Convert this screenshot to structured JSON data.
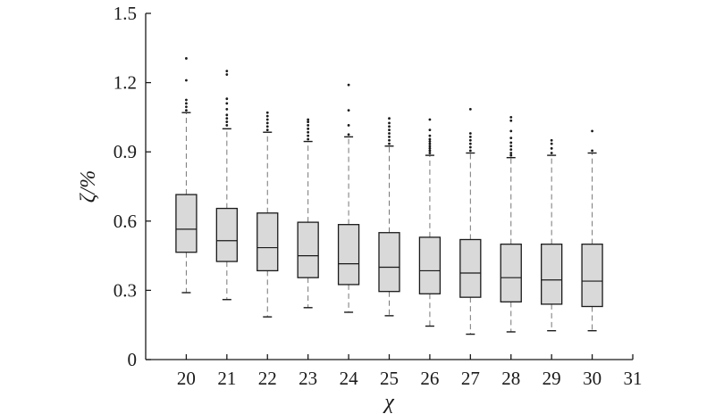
{
  "chart_data": {
    "type": "box",
    "xlabel": "χ",
    "ylabel": "ζ/%",
    "ylim": [
      0,
      1.5
    ],
    "xlim": [
      19,
      31
    ],
    "xticks": [
      "20",
      "21",
      "22",
      "23",
      "24",
      "25",
      "26",
      "27",
      "28",
      "29",
      "30",
      "31"
    ],
    "yticks": [
      "0",
      "0.3",
      "0.6",
      "0.9",
      "1.2",
      "1.5"
    ],
    "grid": false,
    "colors": {
      "box_fill": "#d9d9d9",
      "box_stroke": "#1a1a1a",
      "whisker": "#777777",
      "outlier": "#1a1a1a"
    },
    "boxes": [
      {
        "x": 20,
        "whisker_low": 0.29,
        "q1": 0.465,
        "median": 0.565,
        "q3": 0.715,
        "whisker_high": 1.07,
        "outliers": [
          1.08,
          1.095,
          1.11,
          1.125,
          1.21,
          1.305
        ]
      },
      {
        "x": 21,
        "whisker_low": 0.26,
        "q1": 0.425,
        "median": 0.515,
        "q3": 0.655,
        "whisker_high": 1.0,
        "outliers": [
          1.015,
          1.03,
          1.045,
          1.06,
          1.085,
          1.11,
          1.13,
          1.235,
          1.25
        ]
      },
      {
        "x": 22,
        "whisker_low": 0.185,
        "q1": 0.385,
        "median": 0.485,
        "q3": 0.635,
        "whisker_high": 0.985,
        "outliers": [
          0.995,
          1.01,
          1.025,
          1.04,
          1.055,
          1.07
        ]
      },
      {
        "x": 23,
        "whisker_low": 0.225,
        "q1": 0.355,
        "median": 0.45,
        "q3": 0.595,
        "whisker_high": 0.945,
        "outliers": [
          0.955,
          0.97,
          0.985,
          1.0,
          1.015,
          1.03,
          1.04
        ]
      },
      {
        "x": 24,
        "whisker_low": 0.205,
        "q1": 0.325,
        "median": 0.415,
        "q3": 0.585,
        "whisker_high": 0.965,
        "outliers": [
          0.975,
          1.015,
          1.08,
          1.19
        ]
      },
      {
        "x": 25,
        "whisker_low": 0.19,
        "q1": 0.295,
        "median": 0.4,
        "q3": 0.55,
        "whisker_high": 0.925,
        "outliers": [
          0.935,
          0.95,
          0.965,
          0.98,
          0.995,
          1.01,
          1.025,
          1.045
        ]
      },
      {
        "x": 26,
        "whisker_low": 0.145,
        "q1": 0.285,
        "median": 0.385,
        "q3": 0.53,
        "whisker_high": 0.885,
        "outliers": [
          0.895,
          0.905,
          0.915,
          0.925,
          0.935,
          0.945,
          0.955,
          0.97,
          0.995,
          1.04
        ]
      },
      {
        "x": 27,
        "whisker_low": 0.11,
        "q1": 0.27,
        "median": 0.375,
        "q3": 0.52,
        "whisker_high": 0.895,
        "outliers": [
          0.905,
          0.92,
          0.935,
          0.95,
          0.965,
          0.98,
          1.085
        ]
      },
      {
        "x": 28,
        "whisker_low": 0.12,
        "q1": 0.25,
        "median": 0.355,
        "q3": 0.5,
        "whisker_high": 0.875,
        "outliers": [
          0.885,
          0.895,
          0.91,
          0.925,
          0.94,
          0.96,
          0.99,
          1.035,
          1.05
        ]
      },
      {
        "x": 29,
        "whisker_low": 0.125,
        "q1": 0.24,
        "median": 0.345,
        "q3": 0.5,
        "whisker_high": 0.885,
        "outliers": [
          0.895,
          0.915,
          0.935,
          0.95
        ]
      },
      {
        "x": 30,
        "whisker_low": 0.125,
        "q1": 0.23,
        "median": 0.34,
        "q3": 0.5,
        "whisker_high": 0.895,
        "outliers": [
          0.905,
          0.99
        ]
      }
    ]
  }
}
